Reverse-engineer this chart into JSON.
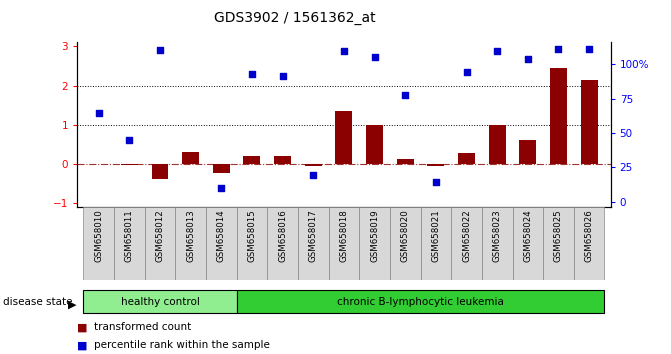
{
  "title": "GDS3902 / 1561362_at",
  "samples": [
    "GSM658010",
    "GSM658011",
    "GSM658012",
    "GSM658013",
    "GSM658014",
    "GSM658015",
    "GSM658016",
    "GSM658017",
    "GSM658018",
    "GSM658019",
    "GSM658020",
    "GSM658021",
    "GSM658022",
    "GSM658023",
    "GSM658024",
    "GSM658025",
    "GSM658026"
  ],
  "bar_values": [
    0.0,
    -0.02,
    -0.38,
    0.3,
    -0.22,
    0.2,
    0.2,
    -0.05,
    1.35,
    1.0,
    0.12,
    -0.06,
    0.27,
    1.0,
    0.6,
    2.45,
    2.15
  ],
  "dot_values": [
    1.3,
    0.62,
    2.9,
    null,
    -0.62,
    2.3,
    2.25,
    -0.28,
    2.88,
    2.73,
    1.75,
    -0.45,
    2.35,
    2.88,
    2.67,
    2.93,
    2.93
  ],
  "healthy_count": 5,
  "bar_color": "#8B0000",
  "dot_color": "#0000CD",
  "zero_line_color": "#8B0000",
  "dotted_line_color": "#000000",
  "healthy_bg": "#90EE90",
  "leukemia_bg": "#32CD32",
  "group_label_healthy": "healthy control",
  "group_label_leukemia": "chronic B-lymphocytic leukemia",
  "disease_state_label": "disease state",
  "legend_bar": "transformed count",
  "legend_dot": "percentile rank within the sample",
  "ylim_left": [
    -1.1,
    3.1
  ],
  "yticks_left": [
    -1,
    0,
    1,
    2,
    3
  ],
  "ylim_right": [
    -4,
    116
  ],
  "yticks_right": [
    0,
    25,
    50,
    75,
    100
  ],
  "yticklabels_right": [
    "0",
    "25",
    "50",
    "75",
    "100%"
  ]
}
